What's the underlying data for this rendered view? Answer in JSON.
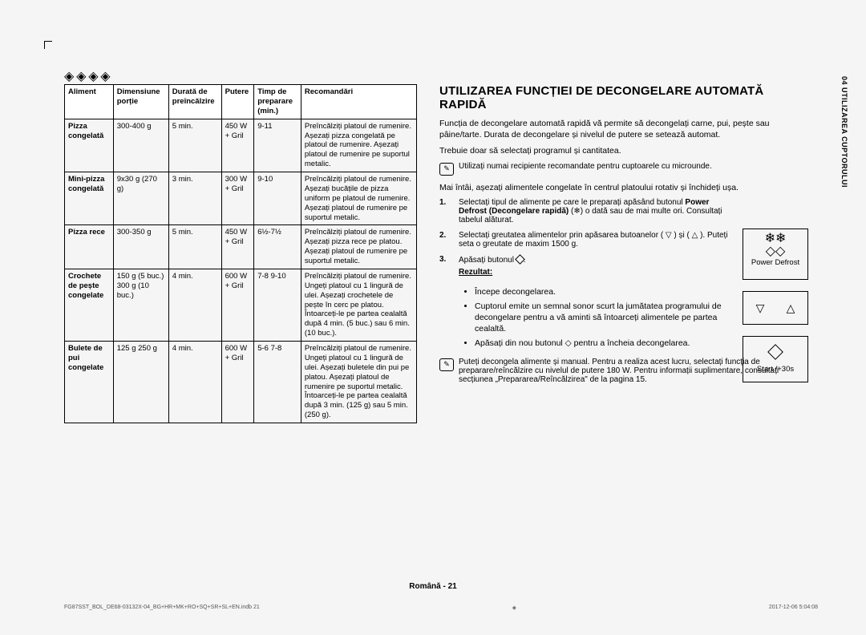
{
  "sideTab": "04  UTILIZAREA CUPTORULUI",
  "footer": "Română - 21",
  "footerLeft": "FG87SST_BOL_DE68-03132X-04_BG+HR+MK+RO+SQ+SR+SL+EN.indb   21",
  "footerRight": "2017-12-06   5:04:08",
  "table": {
    "headers": [
      "Aliment",
      "Dimensiune porție",
      "Durată de preîncălzire",
      "Putere",
      "Timp de preparare (min.)",
      "Recomandări"
    ],
    "rows": [
      {
        "a": "Pizza congelată",
        "b": "300-400 g",
        "c": "5 min.",
        "d": "450 W + Gril",
        "e": "9-11",
        "f": "Preîncălziți platoul de rumenire. Așezați pizza congelată pe platoul de rumenire. Așezați platoul de rumenire pe suportul metalic."
      },
      {
        "a": "Mini-pizza congelată",
        "b": "9x30 g (270 g)",
        "c": "3 min.",
        "d": "300 W + Gril",
        "e": "9-10",
        "f": "Preîncălziți platoul de rumenire. Așezați bucățile de pizza uniform pe platoul de rumenire. Așezați platoul de rumenire pe suportul metalic."
      },
      {
        "a": "Pizza rece",
        "b": "300-350 g",
        "c": "5 min.",
        "d": "450 W + Gril",
        "e": "6½-7½",
        "f": "Preîncălziți platoul de rumenire. Așezați pizza rece pe platou. Așezați platoul de rumenire pe suportul metalic."
      },
      {
        "a": "Crochete de pește congelate",
        "b": "150 g (5 buc.) 300 g (10 buc.)",
        "c": "4 min.",
        "d": "600 W + Gril",
        "e": "7-8 9-10",
        "f": "Preîncălziți platoul de rumenire. Ungeți platoul cu 1 lingură de ulei. Așezați crochetele de pește în cerc pe platou. Întoarceți-le pe partea cealaltă după 4 min. (5 buc.) sau 6 min. (10 buc.)."
      },
      {
        "a": "Bulete de pui congelate",
        "b": "125 g  250 g",
        "c": "4 min.",
        "d": "600 W + Gril",
        "e": "5-6  7-8",
        "f": "Preîncălziți platoul de rumenire. Ungeți platoul cu 1 lingură de ulei. Așezați buletele din pui pe platou. Așezați platoul de rumenire pe suportul metalic. Întoarceți-le pe partea cealaltă după 3 min. (125 g) sau 5 min. (250 g)."
      }
    ]
  },
  "right": {
    "title": "UTILIZAREA FUNCȚIEI DE DECONGELARE AUTOMATĂ RAPIDĂ",
    "p1": "Funcția de decongelare automată rapidă vă permite să decongelați carne, pui, pește sau pâine/tarte. Durata de decongelare și nivelul de putere se setează automat.",
    "p2": "Trebuie doar să selectați programul și cantitatea.",
    "note1": "Utilizați numai recipiente recomandate pentru cuptoarele cu microunde.",
    "p3": "Mai întâi, așezați alimentele congelate în centrul platoului rotativ și închideți ușa.",
    "step1a": "Selectați tipul de alimente pe care le preparați apăsând butonul ",
    "step1b": "Power Defrost (Decongelare rapidă)",
    "step1c": " o dată sau de mai multe ori. Consultați tabelul alăturat.",
    "step2": "Selectați greutatea alimentelor prin apăsarea butoanelor ( ▽ ) și ( △ ). Puteți seta o greutate de maxim 1500 g.",
    "step3": "Apăsați butonul ",
    "resultHead": "Rezultat:",
    "r1": "Începe decongelarea.",
    "r2": "Cuptorul emite un semnal sonor scurt la jumătatea programului de decongelare pentru a vă aminti să întoarceți alimentele pe partea cealaltă.",
    "r3": "Apăsați din nou butonul ◇ pentru a încheia decongelarea.",
    "note2": "Puteți decongela alimente și manual. Pentru a realiza acest lucru, selectați funcția de preparare/reîncălzire cu nivelul de putere 180 W. Pentru informații suplimentare, consultați secțiunea „Prepararea/Reîncălzirea\" de la pagina 15.",
    "boxPower": "Power Defrost",
    "boxStart": "Start /+30s"
  }
}
